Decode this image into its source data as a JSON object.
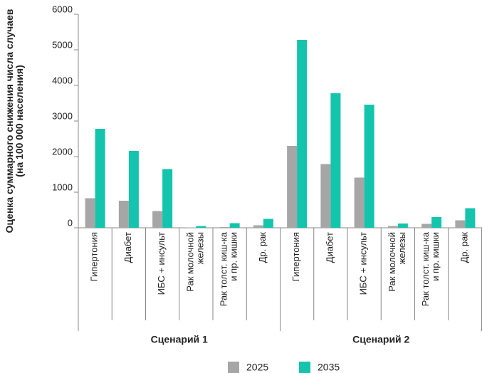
{
  "chart_data": {
    "type": "bar",
    "y_label": [
      "Оценка суммарного снижения числа случаев",
      "(на 100 000 населения)"
    ],
    "groups": [
      "Сценарий 1",
      "Сценарий 2"
    ],
    "categories": [
      [
        "Гипертония"
      ],
      [
        "Диабет"
      ],
      [
        "ИБС + инсульт"
      ],
      [
        "Рак молочной",
        "железы"
      ],
      [
        "Рак толст. киш-ка",
        "и пр. кишки"
      ],
      [
        "Др. рак"
      ],
      [
        "Гипертония"
      ],
      [
        "Диабет"
      ],
      [
        "ИБС + инсульт"
      ],
      [
        "Рак молочной",
        "железы"
      ],
      [
        "Рак толст. киш-ка",
        "и пр. кишки"
      ],
      [
        "Др. рак"
      ]
    ],
    "series": [
      {
        "name": "2025",
        "color": "#a6a6a6",
        "values": [
          830,
          760,
          470,
          10,
          20,
          70,
          2300,
          1790,
          1410,
          50,
          110,
          210
        ]
      },
      {
        "name": "2035",
        "color": "#14c4ac",
        "values": [
          2780,
          2160,
          1650,
          50,
          130,
          250,
          5280,
          3780,
          3460,
          120,
          300,
          550
        ]
      }
    ],
    "ylim": [
      0,
      6000
    ],
    "yticks": [
      0,
      1000,
      2000,
      3000,
      4000,
      5000,
      6000
    ],
    "legend": "bottom"
  }
}
